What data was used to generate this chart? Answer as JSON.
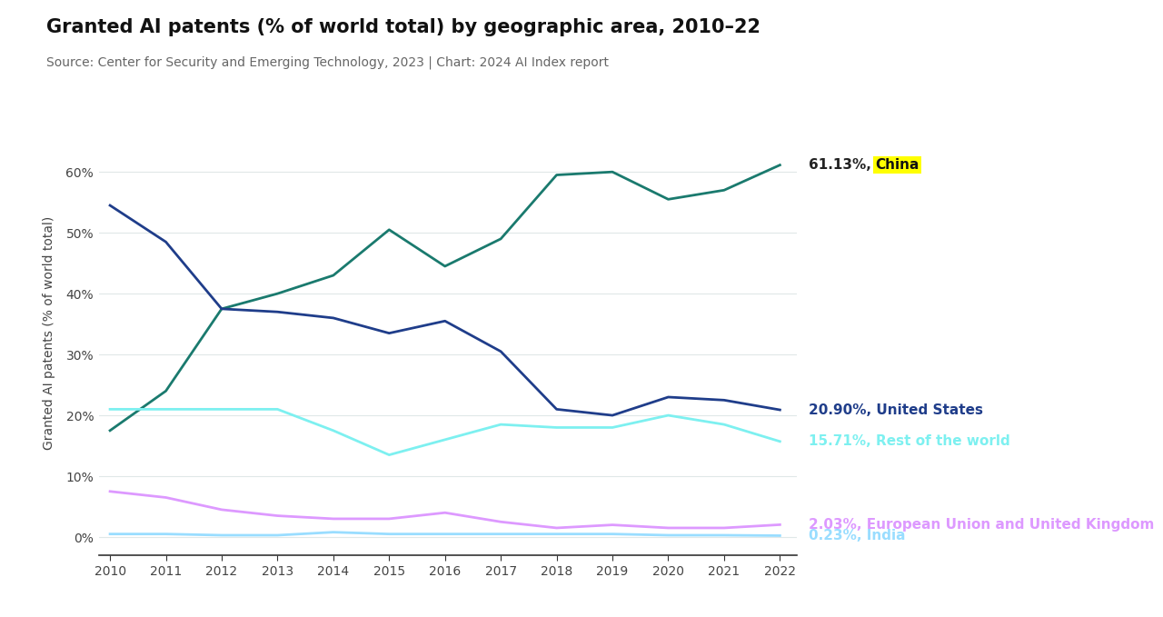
{
  "title": "Granted AI patents (% of world total) by geographic area, 2010–22",
  "subtitle": "Source: Center for Security and Emerging Technology, 2023 | Chart: 2024 AI Index report",
  "ylabel": "Granted AI patents (% of world total)",
  "years": [
    2010,
    2011,
    2012,
    2013,
    2014,
    2015,
    2016,
    2017,
    2018,
    2019,
    2020,
    2021,
    2022
  ],
  "series": {
    "China": {
      "values": [
        17.5,
        24.0,
        37.5,
        40.0,
        43.0,
        50.5,
        44.5,
        49.0,
        59.5,
        60.0,
        55.5,
        57.0,
        61.13
      ],
      "color": "#1a7a6e",
      "label_prefix": "61.13%, ",
      "label_highlight": "China",
      "highlight": true
    },
    "United States": {
      "values": [
        54.5,
        48.5,
        37.5,
        37.0,
        36.0,
        33.5,
        35.5,
        30.5,
        21.0,
        20.0,
        23.0,
        22.5,
        20.9
      ],
      "color": "#1f3d8a",
      "label": "20.90%, United States",
      "highlight": false
    },
    "Rest of the world": {
      "values": [
        21.0,
        21.0,
        21.0,
        21.0,
        17.5,
        13.5,
        16.0,
        18.5,
        18.0,
        18.0,
        20.0,
        18.5,
        15.71
      ],
      "color": "#7df0f0",
      "label": "15.71%, Rest of the world",
      "highlight": false
    },
    "European Union and United Kingdom": {
      "values": [
        7.5,
        6.5,
        4.5,
        3.5,
        3.0,
        3.0,
        4.0,
        2.5,
        1.5,
        2.0,
        1.5,
        1.5,
        2.03
      ],
      "color": "#dd99ff",
      "label": "2.03%, European Union and United Kingdom",
      "highlight": false
    },
    "India": {
      "values": [
        0.5,
        0.5,
        0.3,
        0.3,
        0.8,
        0.5,
        0.5,
        0.5,
        0.5,
        0.5,
        0.3,
        0.3,
        0.23
      ],
      "color": "#99ddff",
      "label": "0.23%, India",
      "highlight": false
    }
  },
  "background_color": "#ffffff",
  "grid_color": "#e0e8e8",
  "ylim": [
    -3,
    70
  ],
  "yticks": [
    0,
    10,
    20,
    30,
    40,
    50,
    60
  ],
  "ytick_labels": [
    "0%",
    "10%",
    "20%",
    "30%",
    "40%",
    "50%",
    "60%"
  ],
  "china_highlight_color": "#ffff00",
  "title_fontsize": 15,
  "subtitle_fontsize": 10,
  "label_fontsize": 11,
  "axis_fontsize": 10
}
